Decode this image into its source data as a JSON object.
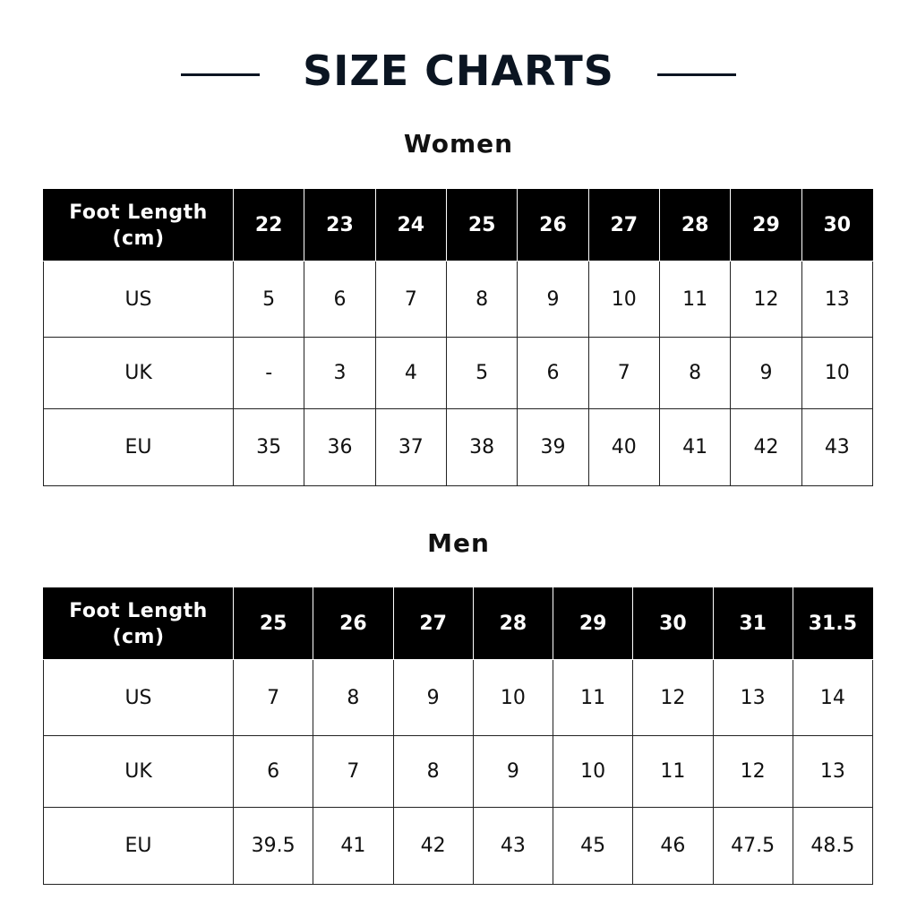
{
  "title": "SIZE CHARTS",
  "colors": {
    "title": "#0b1522",
    "header_bg": "#000000",
    "header_text": "#ffffff"
  },
  "tables": [
    {
      "heading": "Women",
      "header_label": "Foot Length (cm)",
      "columns": [
        "22",
        "23",
        "24",
        "25",
        "26",
        "27",
        "28",
        "29",
        "30"
      ],
      "rows": [
        {
          "label": "US",
          "values": [
            "5",
            "6",
            "7",
            "8",
            "9",
            "10",
            "11",
            "12",
            "13"
          ]
        },
        {
          "label": "UK",
          "values": [
            "-",
            "3",
            "4",
            "5",
            "6",
            "7",
            "8",
            "9",
            "10"
          ]
        },
        {
          "label": "EU",
          "values": [
            "35",
            "36",
            "37",
            "38",
            "39",
            "40",
            "41",
            "42",
            "43"
          ]
        }
      ]
    },
    {
      "heading": "Men",
      "header_label": "Foot Length (cm)",
      "columns": [
        "25",
        "26",
        "27",
        "28",
        "29",
        "30",
        "31",
        "31.5"
      ],
      "rows": [
        {
          "label": "US",
          "values": [
            "7",
            "8",
            "9",
            "10",
            "11",
            "12",
            "13",
            "14"
          ]
        },
        {
          "label": "UK",
          "values": [
            "6",
            "7",
            "8",
            "9",
            "10",
            "11",
            "12",
            "13"
          ]
        },
        {
          "label": "EU",
          "values": [
            "39.5",
            "41",
            "42",
            "43",
            "45",
            "46",
            "47.5",
            "48.5"
          ]
        }
      ]
    }
  ]
}
